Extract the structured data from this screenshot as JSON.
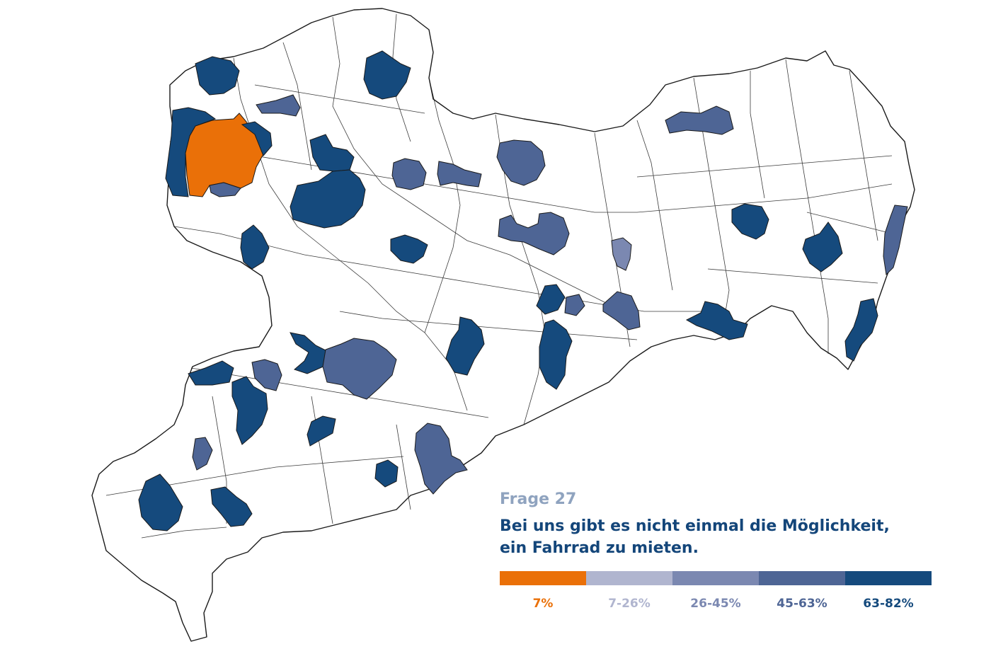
{
  "question": {
    "label": "Frage 27",
    "title_line1": "Bei uns gibt es nicht einmal die Möglichkeit,",
    "title_line2": "ein Fahrrad zu mieten."
  },
  "legend": {
    "classes": [
      {
        "label": "7%",
        "color": "#ea7008",
        "text_color": "#ea7008"
      },
      {
        "label": "7-26%",
        "color": "#b0b5cf",
        "text_color": "#b0b5cf"
      },
      {
        "label": "26-45%",
        "color": "#7b88b1",
        "text_color": "#7b88b1"
      },
      {
        "label": "45-63%",
        "color": "#4e6595",
        "text_color": "#4e6595"
      },
      {
        "label": "63-82%",
        "color": "#154a7d",
        "text_color": "#154a7d"
      }
    ]
  },
  "colors": {
    "outline": "#1a1a1a",
    "background": "#ffffff"
  }
}
